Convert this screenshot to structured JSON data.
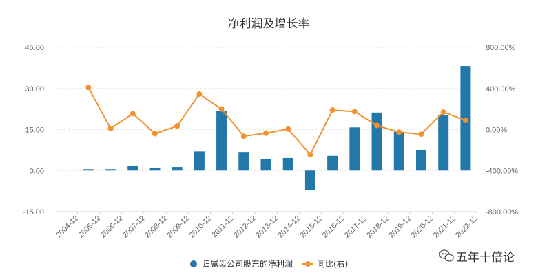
{
  "chart_data": {
    "type": "bar+line",
    "title": "净利润及增长率",
    "categories": [
      "2004-12",
      "2005-12",
      "2006-12",
      "2007-12",
      "2008-12",
      "2009-12",
      "2010-12",
      "2011-12",
      "2012-12",
      "2013-12",
      "2014-12",
      "2015-12",
      "2016-12",
      "2017-12",
      "2018-12",
      "2019-12",
      "2020-12",
      "2021-12",
      "2022-12"
    ],
    "series": [
      {
        "name": "归属母公司股东的净利润",
        "type": "bar",
        "axis": "left",
        "color": "#2278a8",
        "values": [
          0,
          0.5,
          0.5,
          1.8,
          1.0,
          1.3,
          7.0,
          21.7,
          6.8,
          4.3,
          4.6,
          -7.0,
          5.4,
          15.8,
          21.2,
          14.2,
          7.5,
          20.2,
          38.2
        ]
      },
      {
        "name": "同比(右)",
        "type": "line",
        "axis": "right",
        "color": "#f0922e",
        "values": [
          null,
          410,
          10,
          155,
          -40,
          35,
          345,
          200,
          -65,
          -35,
          5,
          -245,
          190,
          175,
          40,
          -25,
          -45,
          170,
          90
        ]
      }
    ],
    "y_left": {
      "min": -15,
      "max": 45,
      "ticks": [
        "-15.00",
        "0.00",
        "15.00",
        "30.00",
        "45.00"
      ]
    },
    "y_right": {
      "min": -800,
      "max": 800,
      "ticks": [
        "-800.00%",
        "-400.00%",
        "0.00%",
        "400.00%",
        "800.00%"
      ]
    },
    "legend": {
      "position": "bottom-center"
    }
  },
  "watermark": {
    "text": "五年十倍论",
    "icon": "wechat-icon"
  }
}
